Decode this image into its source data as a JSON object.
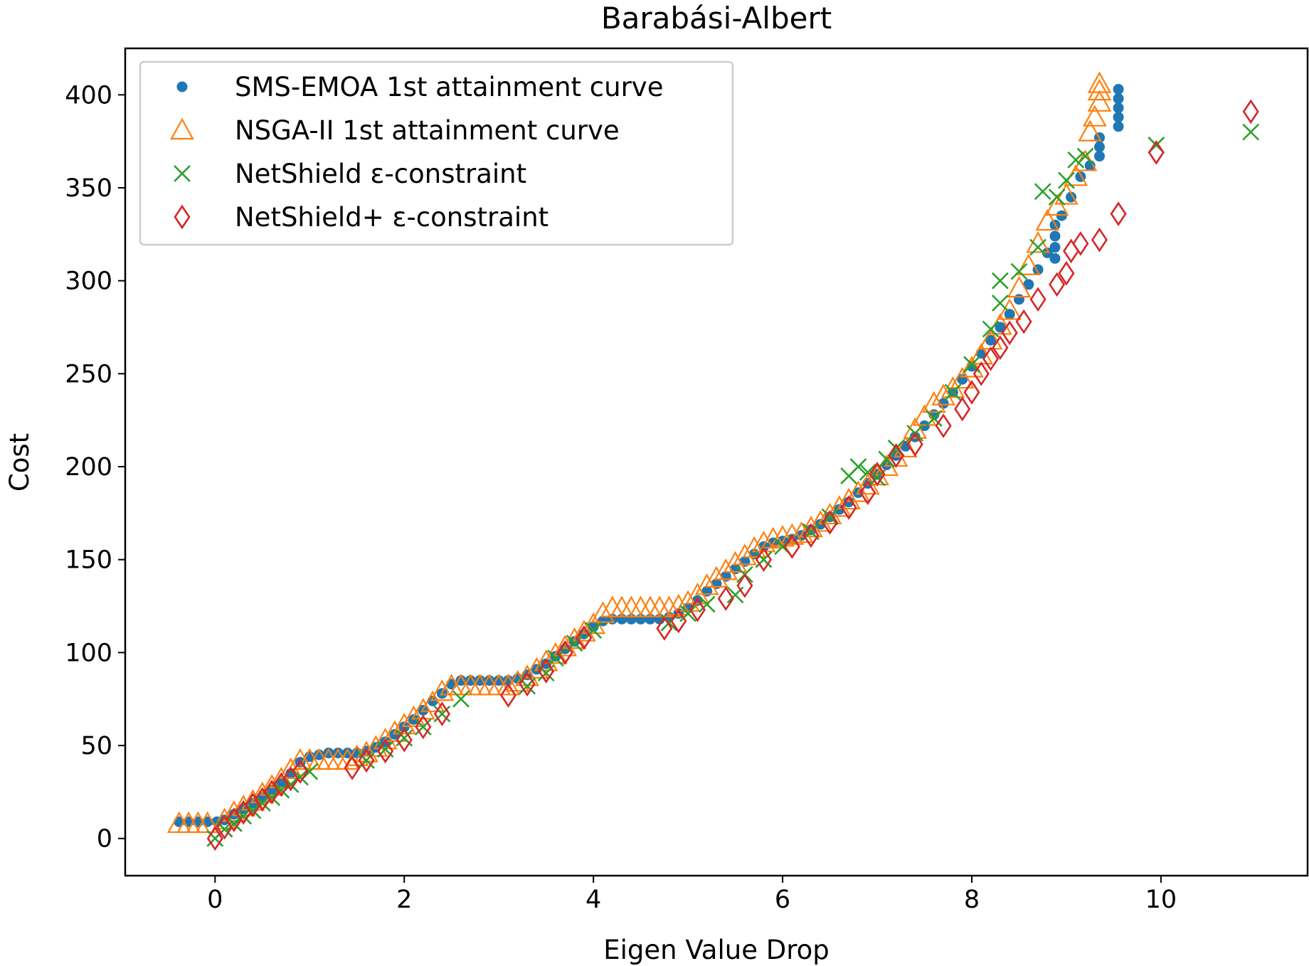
{
  "chart_data": {
    "type": "scatter",
    "title": "Barabási-Albert",
    "xlabel": "Eigen Value Drop",
    "ylabel": "Cost",
    "xlim": [
      -0.95,
      11.55
    ],
    "ylim": [
      -20,
      425
    ],
    "x_ticks": [
      0,
      2,
      4,
      6,
      8,
      10
    ],
    "y_ticks": [
      0,
      50,
      100,
      150,
      200,
      250,
      300,
      350,
      400
    ],
    "grid": false,
    "legend_position": "top-left",
    "series": [
      {
        "name": "SMS-EMOA 1st attainment curve",
        "marker": "dot",
        "color": "#1f77b4",
        "points": [
          [
            -0.38,
            9
          ],
          [
            -0.28,
            9
          ],
          [
            -0.18,
            9
          ],
          [
            -0.08,
            9
          ],
          [
            0.02,
            9
          ],
          [
            0.1,
            10
          ],
          [
            0.2,
            13
          ],
          [
            0.3,
            16
          ],
          [
            0.4,
            19
          ],
          [
            0.5,
            22
          ],
          [
            0.6,
            26
          ],
          [
            0.7,
            30
          ],
          [
            0.8,
            35
          ],
          [
            0.9,
            41
          ],
          [
            1.0,
            44
          ],
          [
            1.1,
            45
          ],
          [
            1.2,
            46
          ],
          [
            1.3,
            46
          ],
          [
            1.4,
            46
          ],
          [
            1.5,
            46
          ],
          [
            1.6,
            47
          ],
          [
            1.7,
            49
          ],
          [
            1.8,
            52
          ],
          [
            1.9,
            56
          ],
          [
            2.0,
            60
          ],
          [
            2.1,
            64
          ],
          [
            2.2,
            69
          ],
          [
            2.3,
            74
          ],
          [
            2.4,
            78
          ],
          [
            2.5,
            83
          ],
          [
            2.6,
            85
          ],
          [
            2.7,
            85
          ],
          [
            2.8,
            85
          ],
          [
            2.9,
            85
          ],
          [
            3.0,
            85
          ],
          [
            3.1,
            85
          ],
          [
            3.2,
            86
          ],
          [
            3.3,
            88
          ],
          [
            3.4,
            91
          ],
          [
            3.5,
            94
          ],
          [
            3.6,
            98
          ],
          [
            3.7,
            102
          ],
          [
            3.8,
            106
          ],
          [
            3.9,
            110
          ],
          [
            4.0,
            114
          ],
          [
            4.1,
            117
          ],
          [
            4.2,
            118
          ],
          [
            4.3,
            118
          ],
          [
            4.4,
            118
          ],
          [
            4.5,
            118
          ],
          [
            4.6,
            118
          ],
          [
            4.7,
            118
          ],
          [
            4.8,
            119
          ],
          [
            4.9,
            121
          ],
          [
            5.0,
            124
          ],
          [
            5.1,
            128
          ],
          [
            5.2,
            133
          ],
          [
            5.3,
            137
          ],
          [
            5.4,
            141
          ],
          [
            5.5,
            145
          ],
          [
            5.6,
            149
          ],
          [
            5.7,
            153
          ],
          [
            5.8,
            157
          ],
          [
            5.9,
            159
          ],
          [
            6.0,
            160
          ],
          [
            6.1,
            161
          ],
          [
            6.2,
            163
          ],
          [
            6.3,
            166
          ],
          [
            6.4,
            169
          ],
          [
            6.5,
            173
          ],
          [
            6.6,
            177
          ],
          [
            6.7,
            181
          ],
          [
            6.8,
            186
          ],
          [
            6.9,
            191
          ],
          [
            7.0,
            196
          ],
          [
            7.1,
            201
          ],
          [
            7.2,
            206
          ],
          [
            7.3,
            211
          ],
          [
            7.4,
            216
          ],
          [
            7.5,
            222
          ],
          [
            7.6,
            228
          ],
          [
            7.7,
            234
          ],
          [
            7.8,
            240
          ],
          [
            7.9,
            247
          ],
          [
            8.0,
            254
          ],
          [
            8.1,
            261
          ],
          [
            8.2,
            268
          ],
          [
            8.3,
            275
          ],
          [
            8.4,
            282
          ],
          [
            8.5,
            290
          ],
          [
            8.6,
            298
          ],
          [
            8.7,
            306
          ],
          [
            8.8,
            315
          ],
          [
            8.88,
            312
          ],
          [
            8.88,
            318
          ],
          [
            8.88,
            324
          ],
          [
            8.88,
            330
          ],
          [
            8.95,
            335
          ],
          [
            9.05,
            345
          ],
          [
            9.15,
            356
          ],
          [
            9.25,
            362
          ],
          [
            9.35,
            367
          ],
          [
            9.35,
            372
          ],
          [
            9.35,
            377
          ],
          [
            9.55,
            383
          ],
          [
            9.55,
            388
          ],
          [
            9.55,
            393
          ],
          [
            9.55,
            398
          ],
          [
            9.55,
            403
          ]
        ]
      },
      {
        "name": "NSGA-II 1st attainment curve",
        "marker": "triangle",
        "color": "#ff7f0e",
        "points": [
          [
            -0.38,
            8
          ],
          [
            -0.28,
            8
          ],
          [
            -0.18,
            8
          ],
          [
            -0.08,
            8
          ],
          [
            0.1,
            10
          ],
          [
            0.2,
            14
          ],
          [
            0.3,
            17
          ],
          [
            0.4,
            20
          ],
          [
            0.5,
            24
          ],
          [
            0.6,
            28
          ],
          [
            0.7,
            32
          ],
          [
            0.8,
            37
          ],
          [
            0.9,
            42
          ],
          [
            1.0,
            42
          ],
          [
            1.1,
            42
          ],
          [
            1.2,
            42
          ],
          [
            1.3,
            42
          ],
          [
            1.4,
            42
          ],
          [
            1.5,
            44
          ],
          [
            1.6,
            46
          ],
          [
            1.7,
            49
          ],
          [
            1.8,
            53
          ],
          [
            1.9,
            57
          ],
          [
            2.0,
            61
          ],
          [
            2.1,
            65
          ],
          [
            2.2,
            69
          ],
          [
            2.3,
            73
          ],
          [
            2.4,
            79
          ],
          [
            2.5,
            82
          ],
          [
            2.6,
            82
          ],
          [
            2.7,
            82
          ],
          [
            2.8,
            82
          ],
          [
            2.9,
            82
          ],
          [
            3.0,
            82
          ],
          [
            3.1,
            82
          ],
          [
            3.2,
            84
          ],
          [
            3.3,
            87
          ],
          [
            3.4,
            91
          ],
          [
            3.5,
            95
          ],
          [
            3.6,
            99
          ],
          [
            3.7,
            103
          ],
          [
            3.8,
            107
          ],
          [
            3.9,
            111
          ],
          [
            4.0,
            115
          ],
          [
            4.1,
            121
          ],
          [
            4.2,
            124
          ],
          [
            4.3,
            124
          ],
          [
            4.4,
            124
          ],
          [
            4.5,
            124
          ],
          [
            4.6,
            124
          ],
          [
            4.7,
            124
          ],
          [
            4.8,
            124
          ],
          [
            4.9,
            125
          ],
          [
            5.0,
            127
          ],
          [
            5.1,
            131
          ],
          [
            5.2,
            136
          ],
          [
            5.3,
            140
          ],
          [
            5.4,
            144
          ],
          [
            5.5,
            148
          ],
          [
            5.6,
            152
          ],
          [
            5.7,
            156
          ],
          [
            5.8,
            159
          ],
          [
            5.9,
            161
          ],
          [
            6.0,
            162
          ],
          [
            6.1,
            163
          ],
          [
            6.2,
            164
          ],
          [
            6.3,
            167
          ],
          [
            6.4,
            170
          ],
          [
            6.5,
            174
          ],
          [
            6.6,
            178
          ],
          [
            6.7,
            182
          ],
          [
            6.8,
            186
          ],
          [
            6.9,
            190
          ],
          [
            7.0,
            195
          ],
          [
            7.1,
            200
          ],
          [
            7.2,
            205
          ],
          [
            7.3,
            210
          ],
          [
            7.4,
            220
          ],
          [
            7.5,
            227
          ],
          [
            7.6,
            234
          ],
          [
            7.7,
            238
          ],
          [
            7.8,
            242
          ],
          [
            7.9,
            247
          ],
          [
            8.0,
            253
          ],
          [
            8.1,
            260
          ],
          [
            8.2,
            268
          ],
          [
            8.3,
            276
          ],
          [
            8.4,
            284
          ],
          [
            8.5,
            296
          ],
          [
            8.6,
            308
          ],
          [
            8.7,
            320
          ],
          [
            8.8,
            332
          ],
          [
            8.9,
            340
          ],
          [
            9.0,
            346
          ],
          [
            9.1,
            356
          ],
          [
            9.2,
            364
          ],
          [
            9.25,
            380
          ],
          [
            9.3,
            388
          ],
          [
            9.35,
            396
          ],
          [
            9.35,
            402
          ],
          [
            9.35,
            406
          ]
        ]
      },
      {
        "name": "NetShield ε-constraint",
        "marker": "x",
        "color": "#2ca02c",
        "points": [
          [
            0.0,
            0
          ],
          [
            0.1,
            5
          ],
          [
            0.2,
            8
          ],
          [
            0.3,
            12
          ],
          [
            0.4,
            15
          ],
          [
            0.5,
            19
          ],
          [
            0.6,
            22
          ],
          [
            0.7,
            26
          ],
          [
            0.8,
            29
          ],
          [
            0.9,
            33
          ],
          [
            1.0,
            36
          ],
          [
            1.6,
            42
          ],
          [
            1.8,
            48
          ],
          [
            2.0,
            54
          ],
          [
            2.2,
            60
          ],
          [
            2.4,
            67
          ],
          [
            2.6,
            75
          ],
          [
            3.3,
            82
          ],
          [
            3.5,
            89
          ],
          [
            3.6,
            97
          ],
          [
            3.8,
            105
          ],
          [
            4.0,
            112
          ],
          [
            4.8,
            116
          ],
          [
            5.0,
            121
          ],
          [
            5.2,
            126
          ],
          [
            5.5,
            131
          ],
          [
            5.6,
            142
          ],
          [
            5.8,
            150
          ],
          [
            6.0,
            157
          ],
          [
            6.3,
            165
          ],
          [
            6.5,
            173
          ],
          [
            6.7,
            195
          ],
          [
            6.8,
            200
          ],
          [
            6.9,
            197
          ],
          [
            7.0,
            194
          ],
          [
            7.1,
            204
          ],
          [
            7.2,
            210
          ],
          [
            7.4,
            218
          ],
          [
            7.6,
            226
          ],
          [
            7.8,
            240
          ],
          [
            8.0,
            255
          ],
          [
            8.2,
            274
          ],
          [
            8.3,
            288
          ],
          [
            8.3,
            300
          ],
          [
            8.5,
            305
          ],
          [
            8.7,
            318
          ],
          [
            8.75,
            348
          ],
          [
            8.9,
            345
          ],
          [
            9.0,
            354
          ],
          [
            9.1,
            365
          ],
          [
            9.2,
            367
          ],
          [
            9.95,
            373
          ],
          [
            10.95,
            380
          ]
        ]
      },
      {
        "name": "NetShield+ ε-constraint",
        "marker": "diamond",
        "color": "#d62728",
        "points": [
          [
            0.0,
            0
          ],
          [
            0.1,
            6
          ],
          [
            0.2,
            10
          ],
          [
            0.3,
            14
          ],
          [
            0.4,
            18
          ],
          [
            0.5,
            21
          ],
          [
            0.6,
            25
          ],
          [
            0.7,
            29
          ],
          [
            0.8,
            32
          ],
          [
            0.9,
            36
          ],
          [
            1.45,
            38
          ],
          [
            1.6,
            42
          ],
          [
            1.8,
            47
          ],
          [
            2.0,
            53
          ],
          [
            2.2,
            60
          ],
          [
            2.4,
            67
          ],
          [
            3.1,
            77
          ],
          [
            3.3,
            83
          ],
          [
            3.5,
            90
          ],
          [
            3.7,
            100
          ],
          [
            3.9,
            108
          ],
          [
            4.75,
            113
          ],
          [
            4.9,
            117
          ],
          [
            5.1,
            123
          ],
          [
            5.4,
            129
          ],
          [
            5.6,
            136
          ],
          [
            5.8,
            150
          ],
          [
            6.1,
            157
          ],
          [
            6.3,
            163
          ],
          [
            6.5,
            170
          ],
          [
            6.7,
            178
          ],
          [
            6.9,
            186
          ],
          [
            7.0,
            196
          ],
          [
            7.2,
            206
          ],
          [
            7.4,
            212
          ],
          [
            7.7,
            222
          ],
          [
            7.9,
            231
          ],
          [
            8.0,
            240
          ],
          [
            8.1,
            250
          ],
          [
            8.2,
            258
          ],
          [
            8.3,
            264
          ],
          [
            8.4,
            272
          ],
          [
            8.55,
            278
          ],
          [
            8.7,
            290
          ],
          [
            8.9,
            298
          ],
          [
            9.0,
            304
          ],
          [
            9.05,
            316
          ],
          [
            9.15,
            320
          ],
          [
            9.35,
            322
          ],
          [
            9.55,
            336
          ],
          [
            9.95,
            369
          ],
          [
            10.95,
            391
          ]
        ]
      }
    ]
  }
}
